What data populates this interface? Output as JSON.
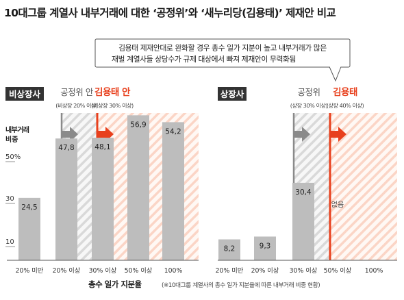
{
  "title": "10대그룹 계열사 내부거래에 대한 ‘공정위’와 ‘새누리당(김용태)’ 제재안 비교",
  "callout": {
    "line1": "김용태 제재안대로 완화할 경우 총수 일가 지분이 높고 내부거래가 많은",
    "line2": "재벌 계열사들 상당수가 규제 대상에서 빠져 제재안이 무력화됨"
  },
  "footer": {
    "bold": "총수 일가 지분율",
    "note": "(※10대그룹 계열사의 총수 일가 지분율에 따른 내부거래 비중 현황)"
  },
  "colors": {
    "bar": "#bdbdbd",
    "red": "#e8401d",
    "gray_arrow": "#8a8a8a",
    "hatch_gray": "#d9d9d9",
    "hatch_red": "#fbd5c6",
    "panel_label_bg": "#333333"
  },
  "chart_data": [
    {
      "type": "bar",
      "panel_label": "비상장사",
      "categories": [
        "20% 미만",
        "20% 이상",
        "30% 이상",
        "50% 이상",
        "100%"
      ],
      "values": [
        24.5,
        47.8,
        48.1,
        56.9,
        54.2
      ],
      "value_labels": [
        "24,5",
        "47,8",
        "48,1",
        "56,9",
        "54,2"
      ],
      "ylabel": "내부거래\n비중",
      "y_ticks": [
        "50%",
        "30",
        "10"
      ],
      "thresholds": [
        {
          "name": "공정위 안",
          "sub": "(비상장 20% 이상)",
          "at": "20% 이상",
          "style": "gray"
        },
        {
          "name": "김용태 안",
          "sub": "(비상장 30% 이상)",
          "at": "30% 이상",
          "style": "red"
        }
      ]
    },
    {
      "type": "bar",
      "panel_label": "상장사",
      "categories": [
        "20% 미만",
        "20% 이상",
        "30% 이상",
        "50% 이상",
        "100%"
      ],
      "values": [
        8.2,
        9.3,
        30.4,
        null,
        null
      ],
      "value_labels": [
        "8,2",
        "9,3",
        "30,4",
        "없음",
        ""
      ],
      "thresholds": [
        {
          "name": "공정위",
          "sub": "(상장 30% 이상)",
          "at": "30% 이상",
          "style": "gray"
        },
        {
          "name": "김용태",
          "sub": "(상장 40% 이상)",
          "at": "40% 이상",
          "style": "red"
        }
      ]
    }
  ]
}
